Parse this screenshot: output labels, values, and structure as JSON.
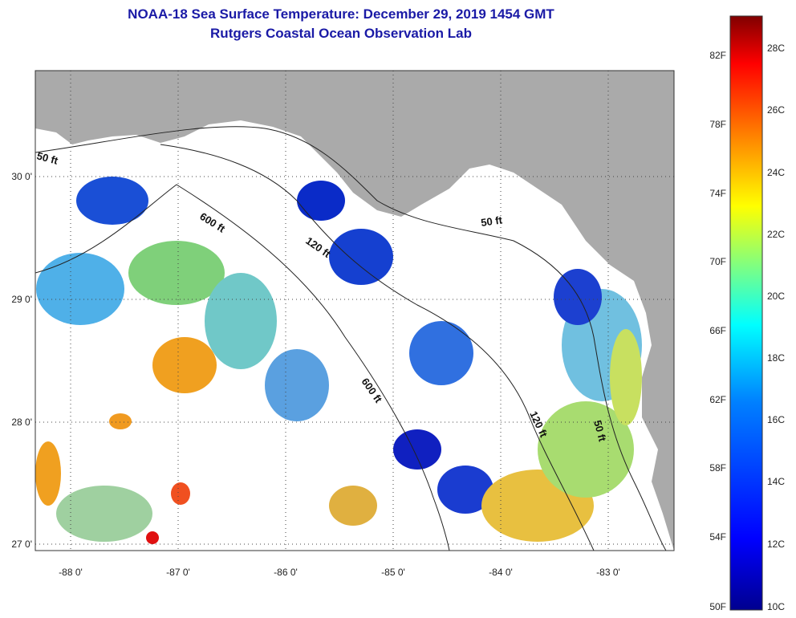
{
  "title": {
    "line1": "NOAA-18 Sea Surface Temperature:  December 29, 2019 1454 GMT",
    "line2": "Rutgers Coastal Ocean Observation Lab"
  },
  "map": {
    "lon_labels": [
      "-88 0'",
      "-87 0'",
      "-86 0'",
      "-85 0'",
      "-84 0'",
      "-83 0'"
    ],
    "lat_labels": [
      "30 0'",
      "29 0'",
      "28 0'",
      "27 0'"
    ],
    "contour_labels": [
      "50 ft",
      "600 ft",
      "120 ft",
      "50 ft",
      "600 ft",
      "120 ft",
      "50 ft"
    ],
    "colors": {
      "land": "#aaaaaa",
      "ocean_nodata": "#ffffff",
      "grid": "#444444"
    }
  },
  "colorbar": {
    "fahrenheit_labels": [
      "82F",
      "78F",
      "74F",
      "70F",
      "66F",
      "62F",
      "58F",
      "54F",
      "50F"
    ],
    "celsius_labels": [
      "28C",
      "26C",
      "24C",
      "22C",
      "20C",
      "18C",
      "16C",
      "14C",
      "12C",
      "10C"
    ],
    "range_c": [
      10,
      29.5
    ],
    "colors": [
      "#00008f",
      "#0000ff",
      "#0080ff",
      "#00ffff",
      "#80ff80",
      "#ffff00",
      "#ff8000",
      "#ff0000",
      "#800000"
    ]
  }
}
